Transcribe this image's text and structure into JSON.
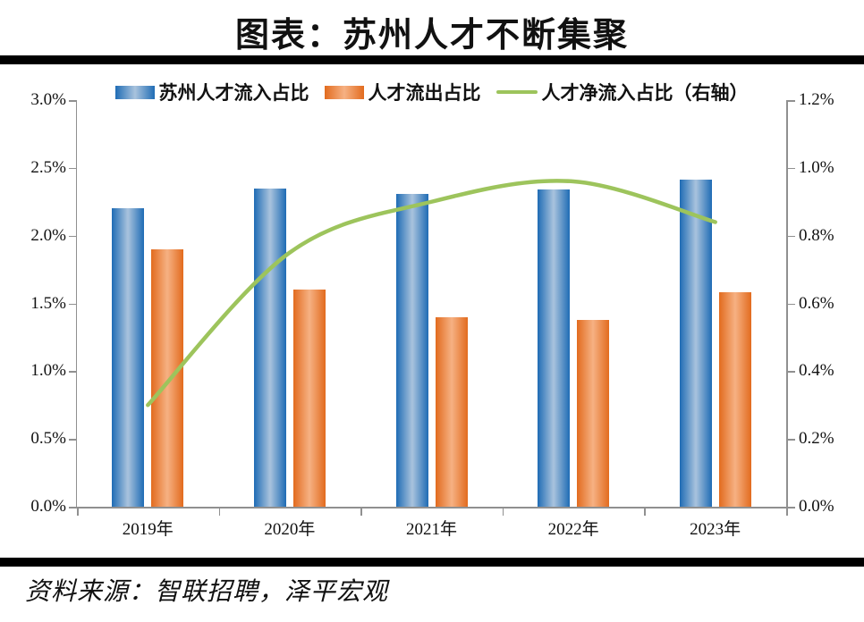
{
  "page": {
    "source": "资料来源：智联招聘，泽平宏观"
  },
  "chart_data": {
    "type": "bar",
    "subtype": "grouped-bars-with-smoothed-line-secondary-axis",
    "title": "图表：苏州人才不断集聚",
    "categories": [
      "2019年",
      "2020年",
      "2021年",
      "2022年",
      "2023年"
    ],
    "series": [
      {
        "name": "苏州人才流入占比",
        "kind": "bar",
        "axis": "left",
        "values": [
          2.2,
          2.35,
          2.31,
          2.34,
          2.41
        ],
        "unit": "%",
        "color_edge": "#1F6CB5",
        "color_mid": "#A9C3DD"
      },
      {
        "name": "人才流出占比",
        "kind": "bar",
        "axis": "left",
        "values": [
          1.9,
          1.6,
          1.4,
          1.38,
          1.58
        ],
        "unit": "%",
        "color_edge": "#E26B1E",
        "color_mid": "#F6B183"
      },
      {
        "name": "人才净流入占比（右轴）",
        "kind": "line",
        "axis": "right",
        "values": [
          0.3,
          0.75,
          0.9,
          0.96,
          0.84
        ],
        "unit": "%",
        "color": "#9DC45C"
      }
    ],
    "left_axis": {
      "min": 0,
      "max": 3.0,
      "ticks": [
        "0.0%",
        "0.5%",
        "1.0%",
        "1.5%",
        "2.0%",
        "2.5%",
        "3.0%"
      ]
    },
    "right_axis": {
      "min": 0,
      "max": 1.2,
      "ticks": [
        "0.0%",
        "0.2%",
        "0.4%",
        "0.6%",
        "0.8%",
        "1.0%",
        "1.2%"
      ]
    },
    "grid": "off",
    "legend_position": "top",
    "axis_color": "#909090"
  }
}
